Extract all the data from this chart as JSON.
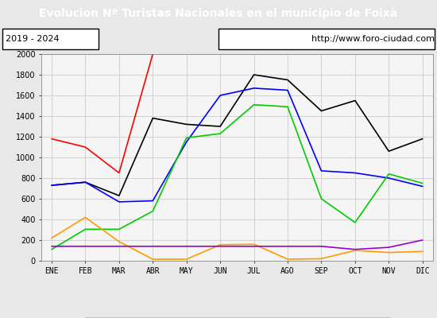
{
  "title": "Evolucion Nº Turistas Nacionales en el municipio de Foixà",
  "subtitle_left": "2019 - 2024",
  "subtitle_right": "http://www.foro-ciudad.com",
  "title_bg_color": "#4a86c8",
  "title_text_color": "#ffffff",
  "months": [
    "ENE",
    "FEB",
    "MAR",
    "ABR",
    "MAY",
    "JUN",
    "JUL",
    "AGO",
    "SEP",
    "OCT",
    "NOV",
    "DIC"
  ],
  "ylim": [
    0,
    2000
  ],
  "yticks": [
    0,
    200,
    400,
    600,
    800,
    1000,
    1200,
    1400,
    1600,
    1800,
    2000
  ],
  "series": {
    "2024": {
      "color": "#ff0000",
      "data": [
        1180,
        1100,
        850,
        2000,
        null,
        null,
        null,
        null,
        null,
        null,
        null,
        null
      ]
    },
    "2023": {
      "color": "#000000",
      "data": [
        730,
        760,
        630,
        1380,
        1320,
        1300,
        1800,
        1750,
        1450,
        1550,
        1060,
        1180
      ]
    },
    "2022": {
      "color": "#0000ff",
      "data": [
        730,
        760,
        570,
        580,
        1150,
        1600,
        1670,
        1650,
        870,
        850,
        800,
        720
      ]
    },
    "2021": {
      "color": "#00cc00",
      "data": [
        110,
        305,
        305,
        480,
        1190,
        1230,
        1510,
        1490,
        600,
        370,
        840,
        750
      ]
    },
    "2020": {
      "color": "#ff9900",
      "data": [
        220,
        420,
        185,
        15,
        15,
        155,
        160,
        15,
        20,
        100,
        80,
        90
      ]
    },
    "2019": {
      "color": "#9900cc",
      "data": [
        140,
        140,
        140,
        140,
        140,
        140,
        140,
        140,
        140,
        110,
        130,
        200
      ]
    }
  },
  "bg_color": "#e8e8e8",
  "plot_bg_color": "#f5f5f5",
  "grid_color": "#cccccc",
  "border_color": "#555555"
}
